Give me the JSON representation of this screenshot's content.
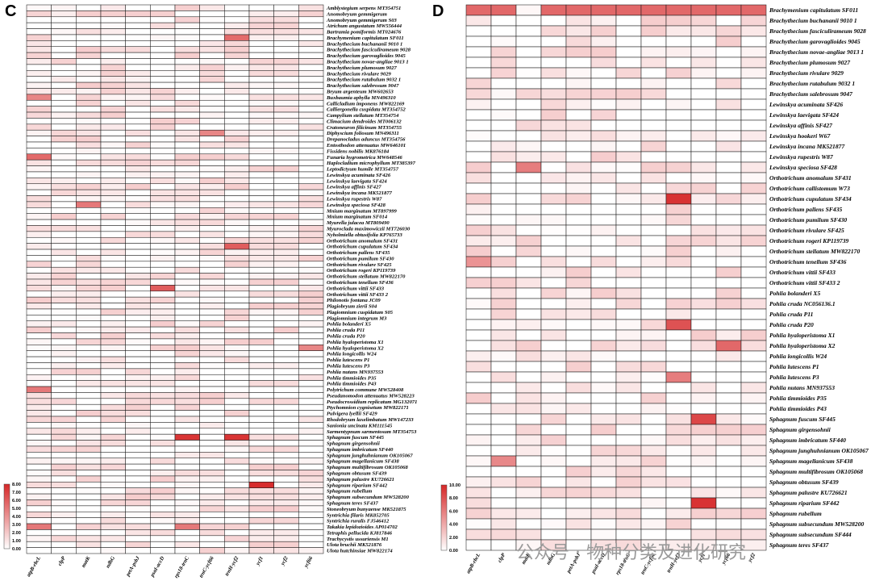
{
  "figure": {
    "watermark_text": "公众号 · 物种分类及进化研究",
    "colors": {
      "low": "#ffffff",
      "high": "#d62728",
      "grid": "#1a1a1a"
    }
  },
  "chart_data": [
    {
      "type": "heatmap",
      "panel_label": "C",
      "columns": [
        "atpB-rbcL",
        "clpP",
        "matK",
        "ndhG",
        "petA-psbJ",
        "psaI-accD",
        "rps18-trnC",
        "trnC-ycf66",
        "trnH-ycf2",
        "ycf1",
        "ycf2",
        "ycf66"
      ],
      "rows": [
        "Amblystegium serpens MT354751",
        "Anomobryum gemmigerum",
        "Anomobryum gemmigerum S03",
        "Atrichum angustatum MW556444",
        "Bartramia pomiformis MT024676",
        "Brachymenium capitulatum SF011",
        "Brachythecium buchananii 9010 1",
        "Brachythecium fasciculirameum 9028",
        "Brachythecium garovaglioides 9045",
        "Brachythecium novae-angliae 9013 1",
        "Brachythecium plumosum 9027",
        "Brachythecium rivulare 9029",
        "Brachythecium rutabulum 9032 1",
        "Brachythecium salebrosum 9047",
        "Bryum argenteum MW602653",
        "Buxbaumia aphylla MN496310",
        "Callicladium imponens MW822169",
        "Calliergonella cuspidata MT354752",
        "Campylium stellatum MT354754",
        "Climacium dendroides MT006132",
        "Cratoneuron filicinum MT354755",
        "Diphyscium foliosum MN496311",
        "Drepanocladus aduncus MT354756",
        "Entosthodon attenuatus MW646101",
        "Fissidens nobilis MK876184",
        "Funaria hygrometrica MW648546",
        "Haplocladium microphyllum MT385397",
        "Leptodictyum humile MT354757",
        "Lewinskya acuminata SF426",
        "Lewinskya laevigata SF424",
        "Lewinskya affinis SF427",
        "Lewinskya incana MK521877",
        "Lewinskya rupestris W87",
        "Lewinskya speciosa SF428",
        "Mnium marginatum MT897999",
        "Mnium marginatum SF014",
        "Myurella julacea MT809490",
        "Myuroclada maximowiczii MT726030",
        "Nyholmiella obtusifolia KP765733",
        "Orthotrichum anomalum SF431",
        "Orthotrichum cupulatum SF434",
        "Orthotrichum pallens SF435",
        "Orthotrichum pumilum SF430",
        "Orthotrichum rivulare SF425",
        "Orthotrichum rogeri KP119739",
        "Orthotrichum stellatum MW822170",
        "Orthotrichum tenellum SF436",
        "Orthotrichum vittii SF433",
        "Orthotrichum vittii SF433 2",
        "Philonotis fontana JC09",
        "Plagiobryum zierii S04",
        "Plagiomnium cuspidatum S05",
        "Plagiomnium integrum M3",
        "Pohlia bolanderi X5",
        "Pohlia cruda P11",
        "Pohlia cruda P20",
        "Pohlia hyaloperistoma X1",
        "Pohlia hyaloperistoma X2",
        "Pohlia longicollis W24",
        "Pohlia lutescens P1",
        "Pohlia lutescens P3",
        "Pohlia nutans MN937553",
        "Pohlia timmioides P35",
        "Pohlia timmioides P43",
        "Polytrichum commune MW528408",
        "Pseudanomodon attenuatus MW528223",
        "Pseudocrossidium replicatum MG132071",
        "Ptychomnion cygnisetum MW822171",
        "Pulvigera lyellii SF429",
        "Rhodobryum laxelimbatum MW147233",
        "Sanionia uncinata KM111545",
        "Sarmentypnum sarmentosum MT354753",
        "Sphagnum fuscum SF445",
        "Sphagnum girgensohnii",
        "Sphagnum imbricatum SF440",
        "Sphagnum junghuhnianum OK105067",
        "Sphagnum magellanicum SF438",
        "Sphagnum multifibrosum OK105068",
        "Sphagnum obtusum SF439",
        "Sphagnum palustre KU726621",
        "Sphagnum riparium SF442",
        "Sphagnum rubellum",
        "Sphagnum subsecundum MW528200",
        "Sphagnum teres SF437",
        "Stoneobryum bunyaense MK521875",
        "Syntrichia filaris MK852705",
        "Syntrichia ruralis FJ546412",
        "Takakia lepidozioides AP014702",
        "Tetraphis pellucida KJ817846",
        "Trachycystis ussuriensis M1",
        "Ulota bruchii MK521876",
        "Ulota hutchinsiae MW822174"
      ],
      "value_range": [
        0,
        8
      ],
      "colorbar_ticks": [
        "0.00",
        "1.00",
        "2.00",
        "3.00",
        "4.00",
        "5.00",
        "6.00",
        "7.00",
        "8.00"
      ],
      "highlights": [
        {
          "row": "Brachymenium capitulatum SF011",
          "column": "trnH-ycf2",
          "value": 5.5
        },
        {
          "row": "Buxbaumia aphylla MN496310",
          "column": "atpB-rbcL",
          "value": 4.5
        },
        {
          "row": "Diphyscium foliosum MN496311",
          "column": "trnC-ycf66",
          "value": 4.5
        },
        {
          "row": "Funaria hygrometrica MW648546",
          "column": "atpB-rbcL",
          "value": 5.5
        },
        {
          "row": "Lewinskya speciosa SF428",
          "column": "matK",
          "value": 5.0
        },
        {
          "row": "Orthotrichum cupulatum SF434",
          "column": "trnH-ycf2",
          "value": 6.0
        },
        {
          "row": "Orthotrichum vittii SF433",
          "column": "psaI-accD",
          "value": 6.0
        },
        {
          "row": "Polytrichum commune MW528408",
          "column": "atpB-rbcL",
          "value": 5.0
        },
        {
          "row": "Sphagnum fuscum SF445",
          "column": "rps18-trnC",
          "value": 7.5
        },
        {
          "row": "Sphagnum fuscum SF445",
          "column": "trnH-ycf2",
          "value": 7.5
        },
        {
          "row": "Sphagnum riparium SF442",
          "column": "ycf1",
          "value": 7.8
        },
        {
          "row": "Takakia lepidozioides AP014702",
          "column": "atpB-rbcL",
          "value": 5.0
        },
        {
          "row": "Takakia lepidozioides AP014702",
          "column": "rps18-trnC",
          "value": 5.0
        },
        {
          "row": "Pohlia hyaloperistoma X2",
          "column": "ycf66",
          "value": 4.5
        }
      ]
    },
    {
      "type": "heatmap",
      "panel_label": "D",
      "columns": [
        "atpB-rbcL",
        "clpP",
        "matK",
        "ndhG",
        "petA-psbJ",
        "psaI-accD",
        "rps18-trnC",
        "trnC-ycf66",
        "trnH-ycf2",
        "ycf1",
        "ycf66",
        "ycf2"
      ],
      "rows": [
        "Brachymenium capitulatum SF011",
        "Brachythecium buchananii 9010 1",
        "Brachythecium fasciculirameum 9028",
        "Brachythecium garovaglioides 9045",
        "Brachythecium novae-angliae 9013 1",
        "Brachythecium plumosum 9027",
        "Brachythecium rivulare 9029",
        "Brachythecium rutabulum 9032 1",
        "Brachythecium salebrosum 9047",
        "Lewinskya acuminata SF426",
        "Lewinskya laevigata SF424",
        "Lewinskya affinis SF427",
        "Lewinskya hookeri W67",
        "Lewinskya incana MK521877",
        "Lewinskya rupestris W87",
        "Lewinskya speciosa SF428",
        "Orthotrichum anomalum SF431",
        "Orthotrichum callistomum W73",
        "Orthotrichum cupulatum SF434",
        "Orthotrichum pallens SF435",
        "Orthotrichum pumilum SF430",
        "Orthotrichum rivulare SF425",
        "Orthotrichum rogeri KP119739",
        "Orthotrichum stellatum MW822170",
        "Orthotrichum tenellum SF436",
        "Orthotrichum vittii SF433",
        "Orthotrichum vittii SF433 2",
        "Pohlia bolanderi X5",
        "Pohlia cruda NC056136.1",
        "Pohlia cruda P11",
        "Pohlia cruda P20",
        "Pohlia hyaloperistoma X1",
        "Pohlia hyaloperistoma X2",
        "Pohlia longicollis W24",
        "Pohlia lutescens P1",
        "Pohlia lutescens P3",
        "Pohlia nutans MN937553",
        "Pohlia timmioides P35",
        "Pohlia timmioides P43",
        "Sphagnum fuscum SF445",
        "Sphagnum girgensohnii",
        "Sphagnum imbricatum SF440",
        "Sphagnum junghuhnianum OK105067",
        "Sphagnum magellanicum SF438",
        "Sphagnum multifibrosum OK105068",
        "Sphagnum obtusum SF439",
        "Sphagnum palustre KU726621",
        "Sphagnum riparium SF442",
        "Sphagnum rubellum",
        "Sphagnum subsecundum MW528200",
        "Sphagnum subsecundum SF444",
        "Sphagnum teres SF437"
      ],
      "value_range": [
        0,
        10
      ],
      "colorbar_ticks": [
        "0.00",
        "2.00",
        "4.00",
        "6.00",
        "8.00",
        "10.00"
      ],
      "highlights": [
        {
          "row": "Brachymenium capitulatum SF011",
          "column": "atpB-rbcL",
          "value": 7.0
        },
        {
          "row": "Brachymenium capitulatum SF011",
          "column": "clpP",
          "value": 7.0
        },
        {
          "row": "Brachymenium capitulatum SF011",
          "column": "ndhG",
          "value": 7.0
        },
        {
          "row": "Brachymenium capitulatum SF011",
          "column": "petA-psbJ",
          "value": 7.0
        },
        {
          "row": "Brachymenium capitulatum SF011",
          "column": "psaI-accD",
          "value": 7.0
        },
        {
          "row": "Brachymenium capitulatum SF011",
          "column": "rps18-trnC",
          "value": 7.0
        },
        {
          "row": "Brachymenium capitulatum SF011",
          "column": "trnC-ycf66",
          "value": 7.0
        },
        {
          "row": "Brachymenium capitulatum SF011",
          "column": "trnH-ycf2",
          "value": 7.0
        },
        {
          "row": "Brachymenium capitulatum SF011",
          "column": "ycf1",
          "value": 7.0
        },
        {
          "row": "Brachymenium capitulatum SF011",
          "column": "ycf66",
          "value": 7.0
        },
        {
          "row": "Brachymenium capitulatum SF011",
          "column": "ycf2",
          "value": 7.0
        },
        {
          "row": "Lewinskya speciosa SF428",
          "column": "matK",
          "value": 6.0
        },
        {
          "row": "Orthotrichum cupulatum SF434",
          "column": "trnH-ycf2",
          "value": 9.5
        },
        {
          "row": "Orthotrichum tenellum SF436",
          "column": "atpB-rbcL",
          "value": 5.0
        },
        {
          "row": "Pohlia cruda P20",
          "column": "trnH-ycf2",
          "value": 8.0
        },
        {
          "row": "Pohlia hyaloperistoma X2",
          "column": "ycf66",
          "value": 7.0
        },
        {
          "row": "Pohlia lutescens P3",
          "column": "trnH-ycf2",
          "value": 6.0
        },
        {
          "row": "Sphagnum fuscum SF445",
          "column": "ycf1",
          "value": 8.5
        },
        {
          "row": "Sphagnum magellanicum SF438",
          "column": "clpP",
          "value": 5.5
        },
        {
          "row": "Sphagnum riparium SF442",
          "column": "ycf1",
          "value": 9.5
        }
      ]
    }
  ]
}
